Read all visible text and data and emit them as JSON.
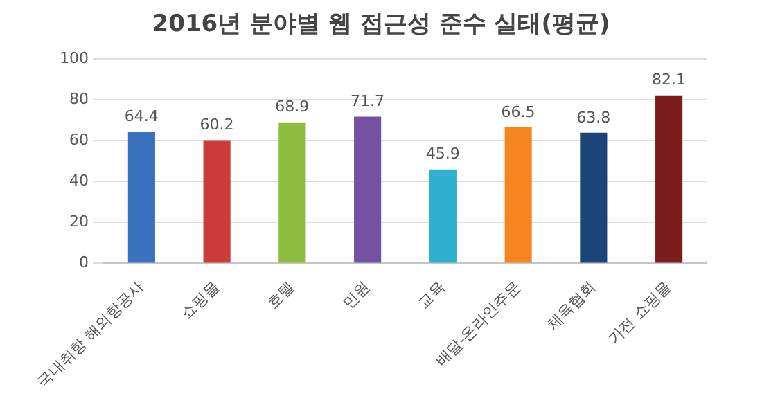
{
  "chart_data": {
    "type": "bar",
    "title": "2016년 분야별 웹 접근성 준수 실태(평균)",
    "categories": [
      "국내취항 해외항공사",
      "쇼핑몰",
      "호텔",
      "민원",
      "교육",
      "배달-온라인주문",
      "체육협회",
      "가전 쇼핑몰"
    ],
    "values": [
      64.4,
      60.2,
      68.9,
      71.7,
      45.9,
      66.5,
      63.8,
      82.1
    ],
    "colors": [
      "#3a72c0",
      "#cc3a3a",
      "#8cbc3c",
      "#7350a0",
      "#30b0d0",
      "#f5861f",
      "#1c4478",
      "#7c1c1c"
    ],
    "ylim": [
      0,
      100
    ],
    "yticks": [
      0,
      20,
      40,
      60,
      80,
      100
    ],
    "grid": "y",
    "data_labels": true,
    "legend": false
  }
}
